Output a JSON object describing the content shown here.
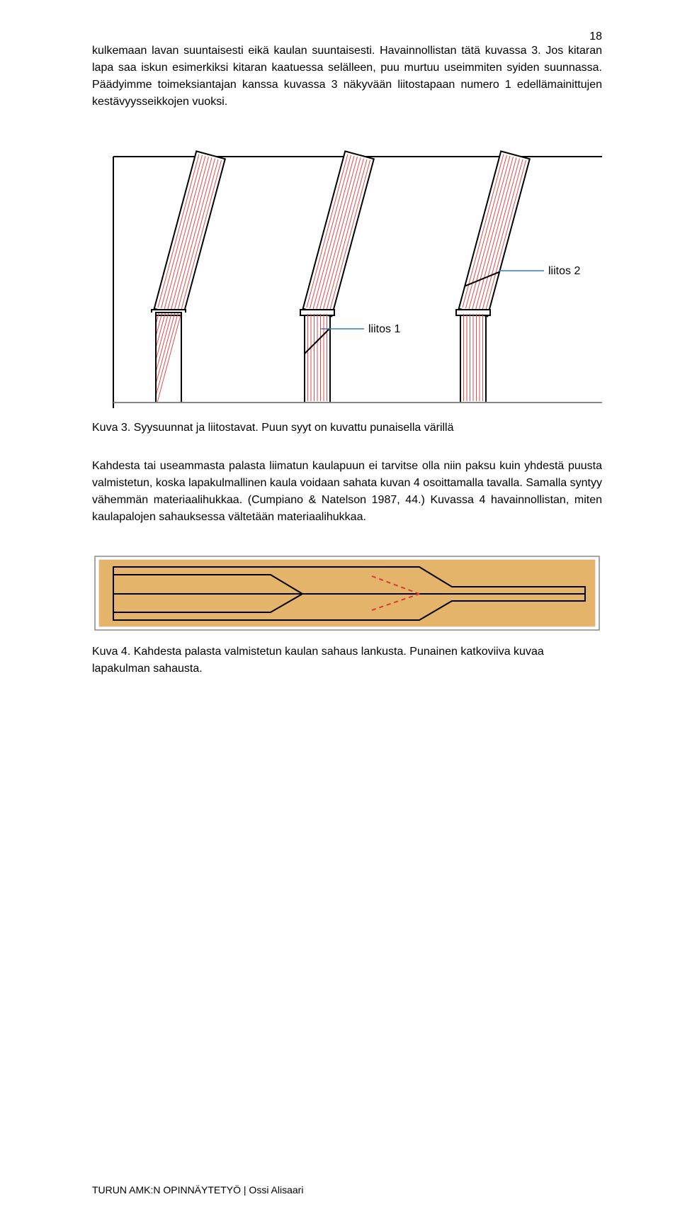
{
  "page_number": "18",
  "paragraph1": "kulkemaan lavan suuntaisesti eikä kaulan suuntaisesti. Havainnollistan tätä kuvassa 3. Jos kitaran lapa saa iskun esimerkiksi kitaran kaatuessa selälleen, puu murtuu useimmiten syiden suunnassa. Päädyimme toimeksiantajan kanssa kuvassa 3 näkyvään liitostapaan numero 1 edellämainittujen kestävyysseikkojen vuoksi.",
  "figure3": {
    "label_liitos1": "liitos 1",
    "label_liitos2": "liitos 2",
    "caption": "Kuva 3. Syysuunnat ja liitostavat. Puun syyt on kuvattu punaisella värillä",
    "colors": {
      "frame": "#000000",
      "grain": "#e24a4a",
      "leader": "#2b7bd6",
      "label": "#2b7bd6",
      "bg": "#ffffff"
    }
  },
  "paragraph2": "Kahdesta tai useammasta palasta liimatun kaulapuun ei tarvitse olla niin paksu kuin yhdestä puusta valmistetun, koska lapakulmallinen kaula voidaan sahata kuvan 4 osoittamalla tavalla. Samalla syntyy vähemmän materiaalihukkaa. (Cumpiano & Natelson 1987, 44.) Kuvassa 4 havainnollistan, miten kaulapalojen sahauksessa vältetään materiaalihukkaa.",
  "figure4": {
    "caption": "Kuva 4. Kahdesta palasta valmistetun kaulan sahaus lankusta. Punainen katkoviiva kuvaa lapakulman sahausta.",
    "colors": {
      "board": "#e3b46a",
      "outline": "#000000",
      "cut": "#d83a3a",
      "frame": "#888888",
      "innerframe": "#cccccc"
    }
  },
  "footer": "TURUN AMK:N OPINNÄYTETYÖ | Ossi Alisaari"
}
